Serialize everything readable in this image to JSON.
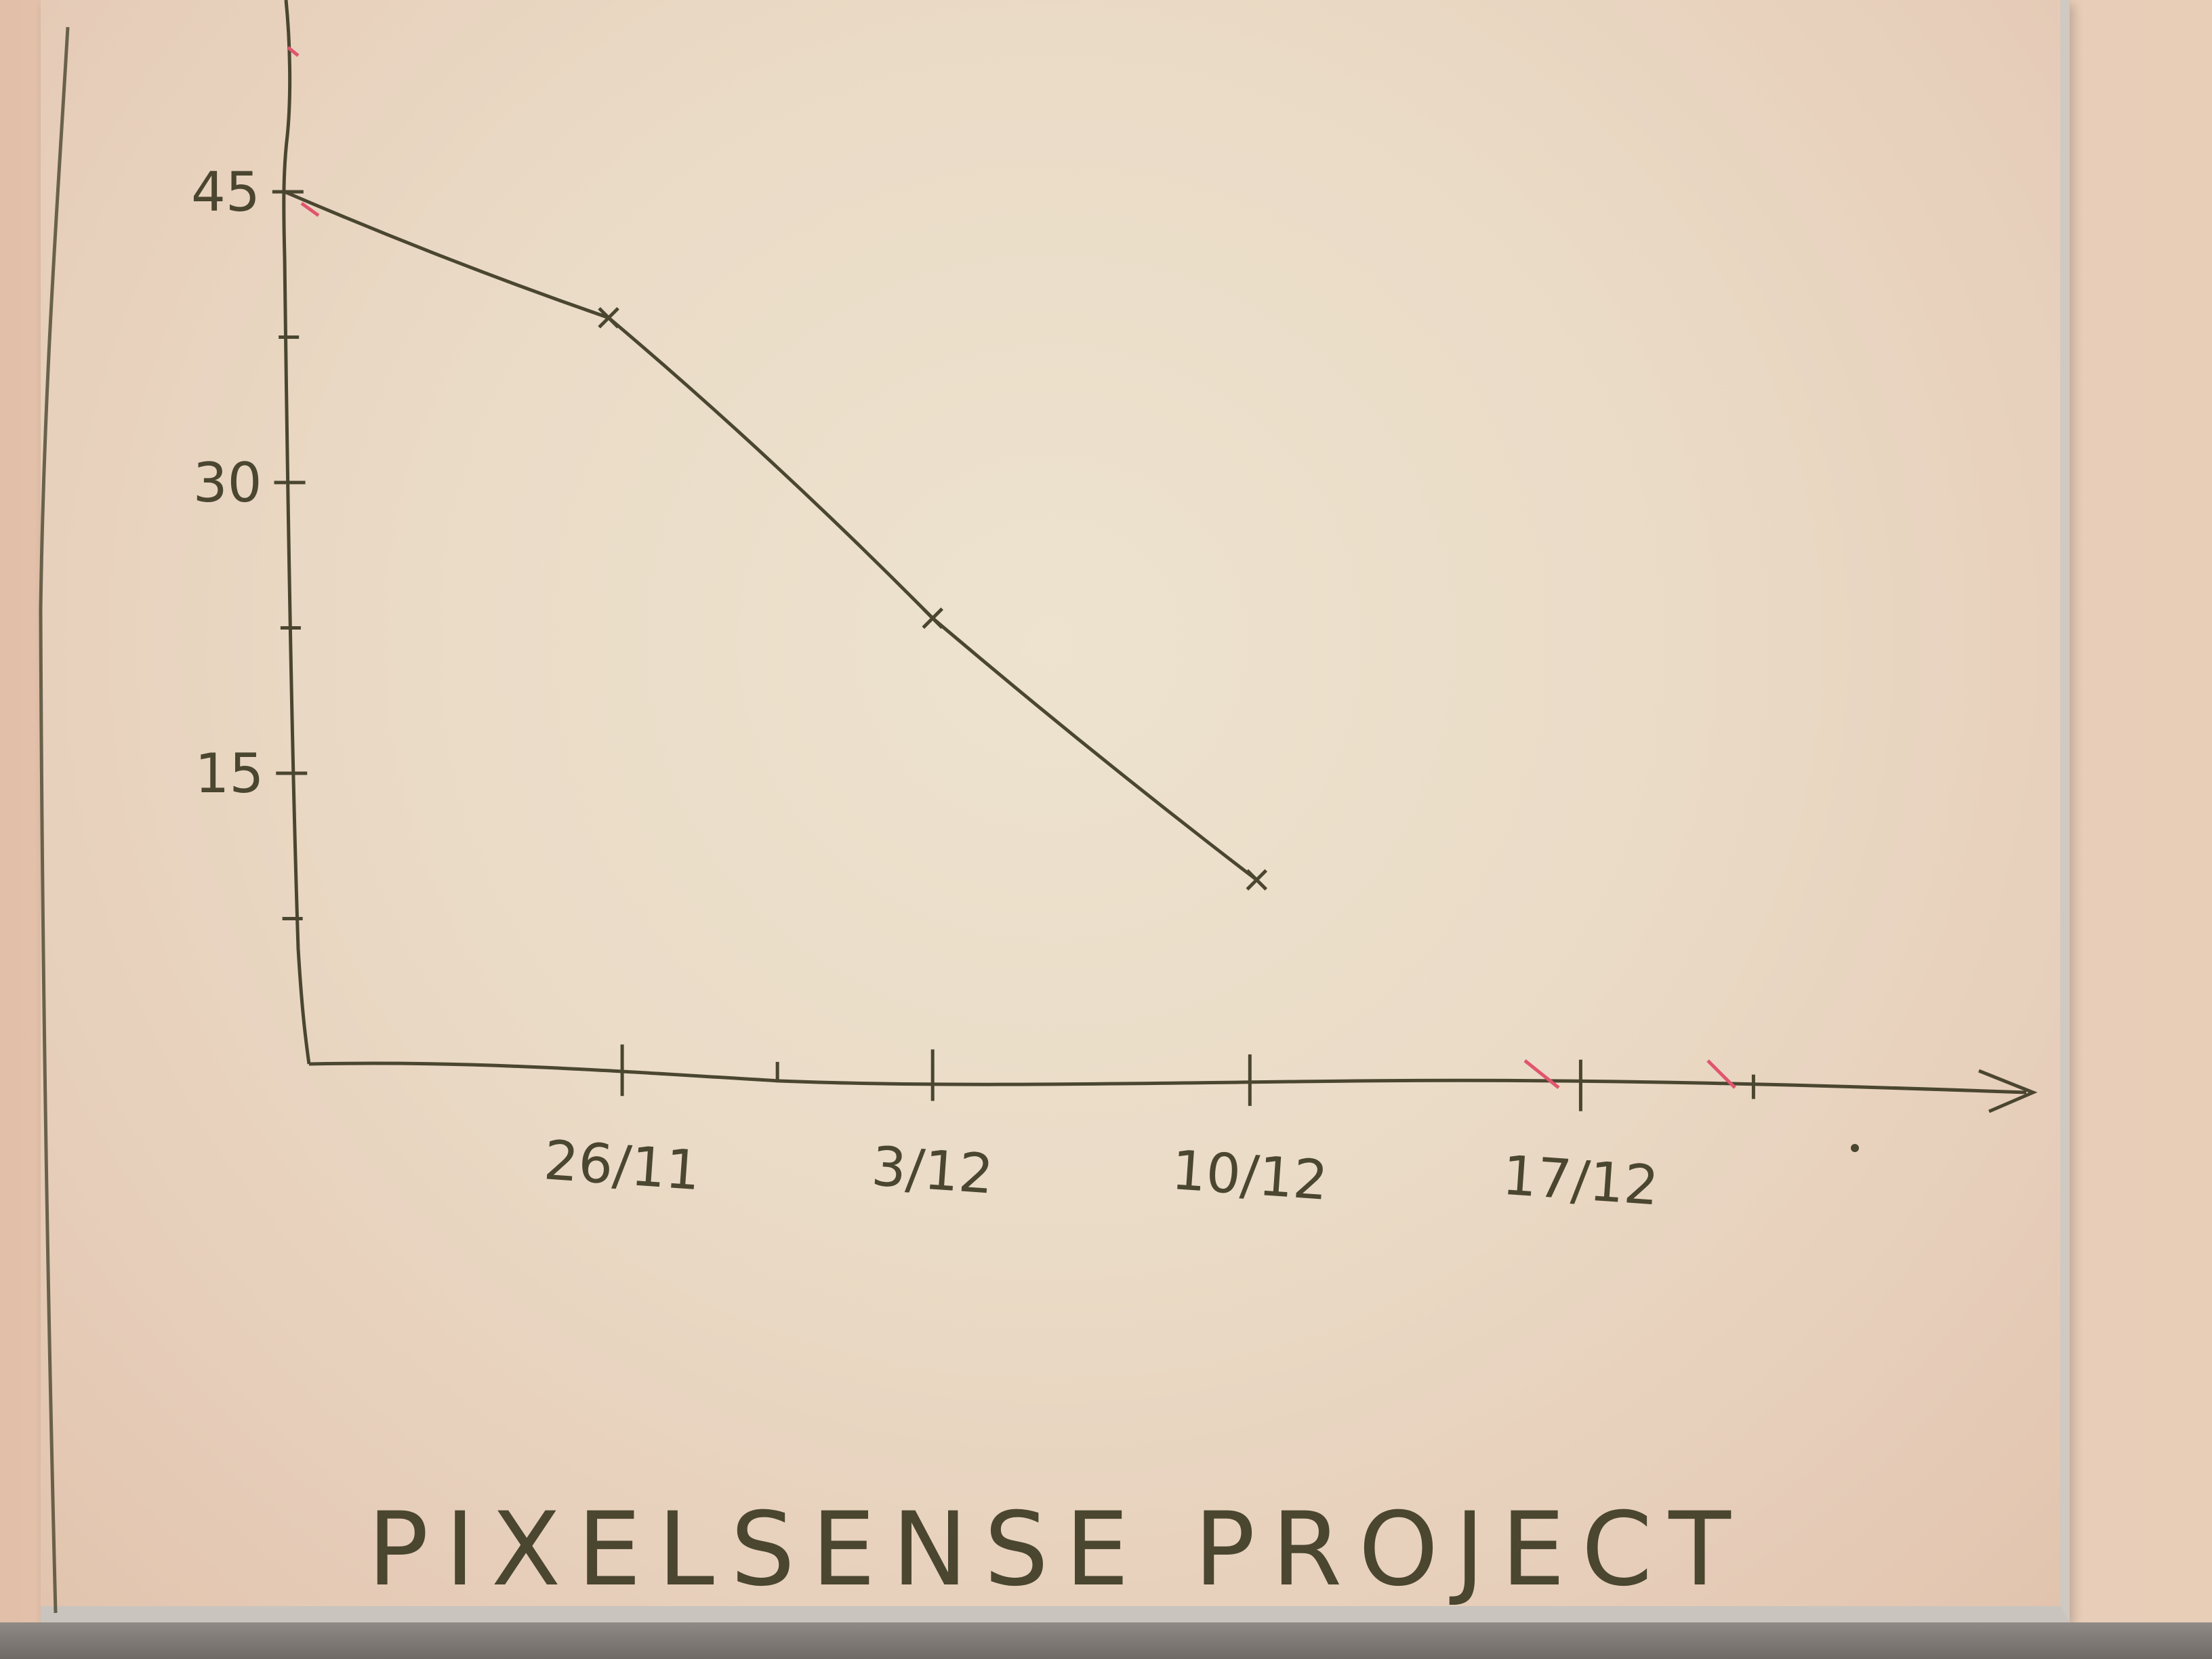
{
  "chart_data": {
    "type": "line",
    "title": "PIXELSENSE PROJECT",
    "xlabel": "",
    "ylabel": "",
    "x_ticks": [
      "26/11",
      "3/12",
      "10/12",
      "17/12"
    ],
    "y_ticks": [
      "45",
      "30",
      "15"
    ],
    "ylim": [
      0,
      53
    ],
    "series": [
      {
        "x": [
          "19/11",
          "26/11",
          "3/12",
          "10/12"
        ],
        "values": [
          45,
          38.5,
          23,
          9.5
        ]
      }
    ],
    "grid": false,
    "legend": "none"
  },
  "colors": {
    "ink": "#4a4630",
    "red_ink": "#e0566e"
  }
}
